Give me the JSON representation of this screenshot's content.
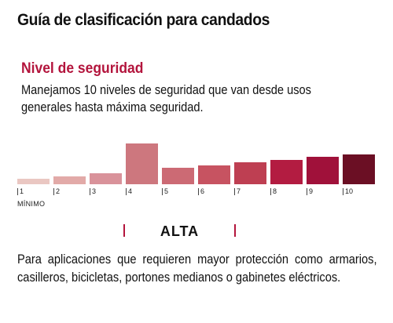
{
  "header": {
    "title": "Guía de clasificación para candados"
  },
  "section": {
    "title": "Nivel de seguridad",
    "description": "Manejamos 10 niveles de seguridad que van desde usos generales hasta máxima seguridad."
  },
  "scale": {
    "min_label": "MÍNIMO",
    "selected_level": 4,
    "levels": [
      {
        "label": "1",
        "color": "#eac7c2"
      },
      {
        "label": "2",
        "color": "#e2aaa8"
      },
      {
        "label": "3",
        "color": "#d9929a"
      },
      {
        "label": "4",
        "color": "#cd777e"
      },
      {
        "label": "5",
        "color": "#cc6a74"
      },
      {
        "label": "6",
        "color": "#c75361"
      },
      {
        "label": "7",
        "color": "#be3f52"
      },
      {
        "label": "8",
        "color": "#b31c41"
      },
      {
        "label": "9",
        "color": "#a0113a"
      },
      {
        "label": "10",
        "color": "#6b0f24"
      }
    ]
  },
  "level_info": {
    "label": "ALTA",
    "description": "Para aplicaciones que requieren mayor protección como armarios, casilleros, bicicletas, portones medianos o gabinetes eléctricos."
  },
  "colors": {
    "accent": "#b3143c",
    "text": "#111111"
  }
}
